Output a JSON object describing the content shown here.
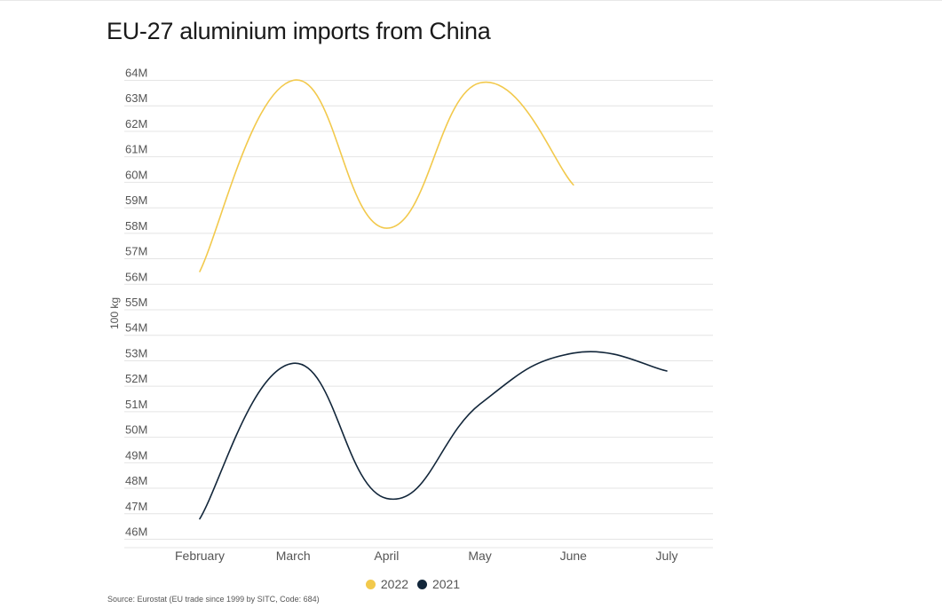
{
  "title": "EU-27 aluminium imports from China",
  "source": "Source: Eurostat (EU trade since 1999 by SITC, Code: 684)",
  "legend": [
    {
      "label": "2022",
      "color": "#f2c94c"
    },
    {
      "label": "2021",
      "color": "#12263a"
    }
  ],
  "chart_data": {
    "type": "line",
    "title": "EU-27 aluminium imports from China",
    "xlabel": "",
    "ylabel": "100 kg",
    "categories": [
      "February",
      "March",
      "April",
      "May",
      "June",
      "July"
    ],
    "yticks": [
      {
        "v": 46,
        "label": "46M"
      },
      {
        "v": 47,
        "label": "47M"
      },
      {
        "v": 48,
        "label": "48M"
      },
      {
        "v": 49,
        "label": "49M"
      },
      {
        "v": 50,
        "label": "50M"
      },
      {
        "v": 51,
        "label": "51M"
      },
      {
        "v": 52,
        "label": "52M"
      },
      {
        "v": 53,
        "label": "53M"
      },
      {
        "v": 54,
        "label": "54M"
      },
      {
        "v": 55,
        "label": "55M"
      },
      {
        "v": 56,
        "label": "56M"
      },
      {
        "v": 57,
        "label": "57M"
      },
      {
        "v": 58,
        "label": "58M"
      },
      {
        "v": 59,
        "label": "59M"
      },
      {
        "v": 60,
        "label": "60M"
      },
      {
        "v": 61,
        "label": "61M"
      },
      {
        "v": 62,
        "label": "62M"
      },
      {
        "v": 63,
        "label": "63M"
      },
      {
        "v": 64,
        "label": "64M"
      }
    ],
    "ylim": [
      45.6,
      64.3
    ],
    "grid": true,
    "legend_position": "bottom",
    "series": [
      {
        "name": "2022",
        "color": "#f2c94c",
        "values": [
          56.5,
          64.0,
          58.2,
          63.9,
          59.9,
          null
        ]
      },
      {
        "name": "2021",
        "color": "#12263a",
        "values": [
          46.8,
          52.9,
          47.6,
          51.3,
          53.3,
          52.6
        ]
      }
    ]
  }
}
